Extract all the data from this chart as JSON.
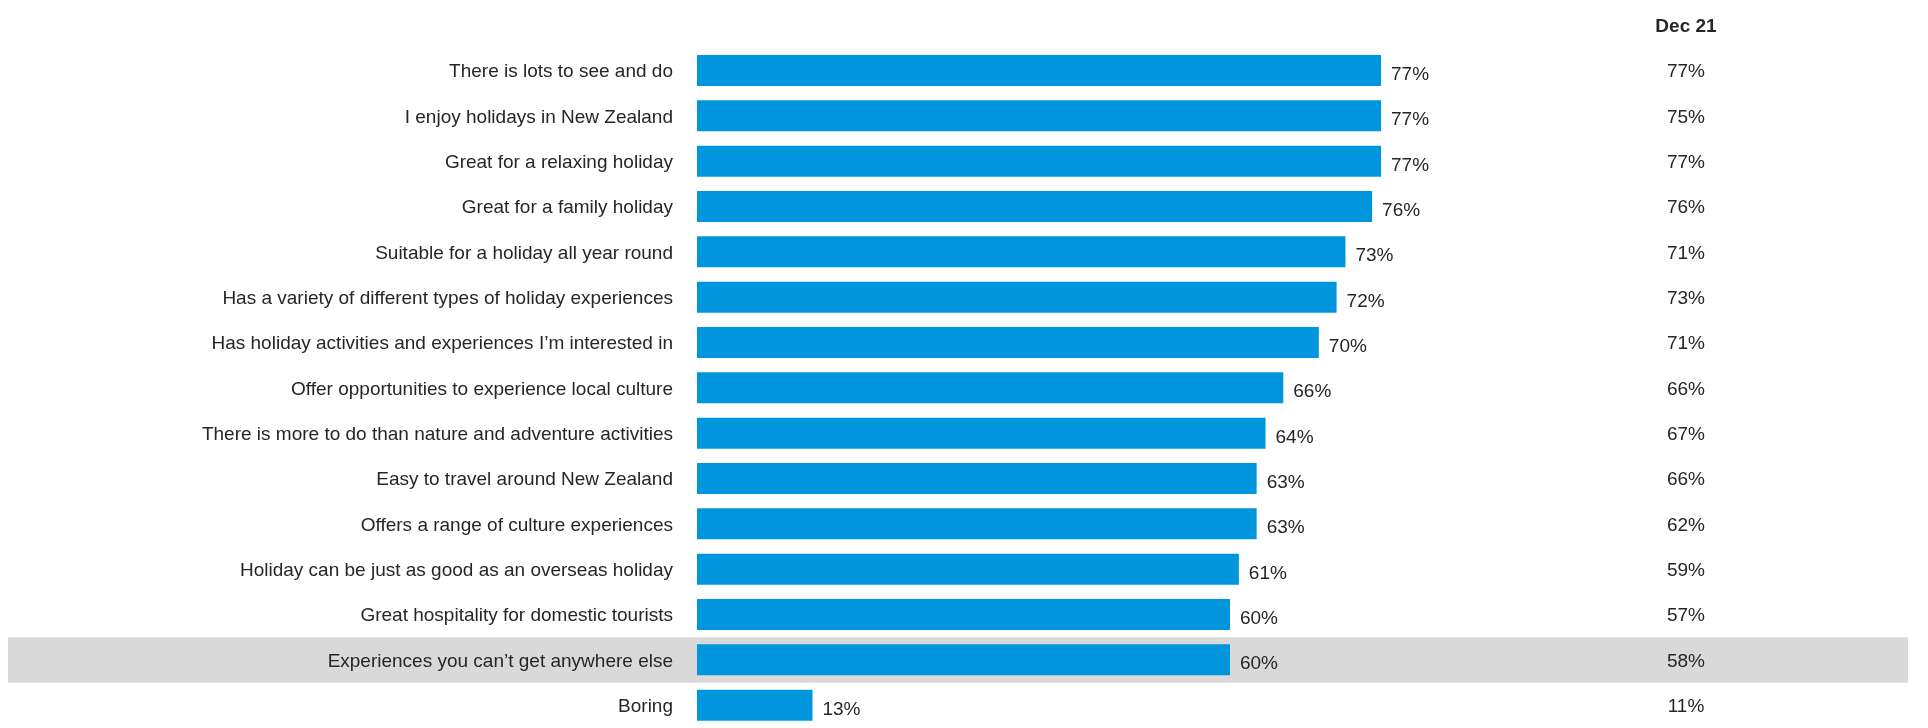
{
  "chart_data": [
    {
      "type": "bar",
      "orientation": "horizontal",
      "categories": [
        "There is lots to see and do",
        "I enjoy holidays in New Zealand",
        "Great for a relaxing holiday",
        "Great for a family holiday",
        "Suitable for a holiday all year round",
        "Has a variety of different types of holiday experiences",
        "Has holiday activities and experiences I’m interested in",
        "Offer opportunities to experience local culture",
        "There is more to do than nature and adventure activities",
        "Easy to travel around New Zealand",
        "Offers a range of culture experiences",
        "Holiday can be just as good as an overseas holiday",
        "Great hospitality for domestic tourists",
        "Experiences you can’t get anywhere else",
        "Boring"
      ],
      "color": "#0095dd",
      "values": [
        77,
        77,
        77,
        76,
        73,
        72,
        70,
        66,
        64,
        63,
        63,
        61,
        60,
        60,
        13
      ],
      "value_labels": [
        "77%",
        "77%",
        "77%",
        "76%",
        "73%",
        "72%",
        "70%",
        "66%",
        "64%",
        "63%",
        "63%",
        "61%",
        "60%",
        "60%",
        "13%"
      ],
      "bands": [
        {
          "axis": "y",
          "from": "Experiences you can’t get anywhere else",
          "to": "Experiences you can’t get anywhere else",
          "color": "#d9d9d9"
        }
      ]
    },
    {
      "type": "other",
      "title": "Dec 21",
      "color": "#262626",
      "values": [
        77,
        75,
        77,
        76,
        71,
        73,
        71,
        66,
        67,
        66,
        62,
        59,
        57,
        58,
        11
      ],
      "value_labels": [
        "77%",
        "75%",
        "77%",
        "76%",
        "71%",
        "73%",
        "71%",
        "66%",
        "67%",
        "66%",
        "62%",
        "59%",
        "57%",
        "58%",
        "11%"
      ]
    }
  ]
}
